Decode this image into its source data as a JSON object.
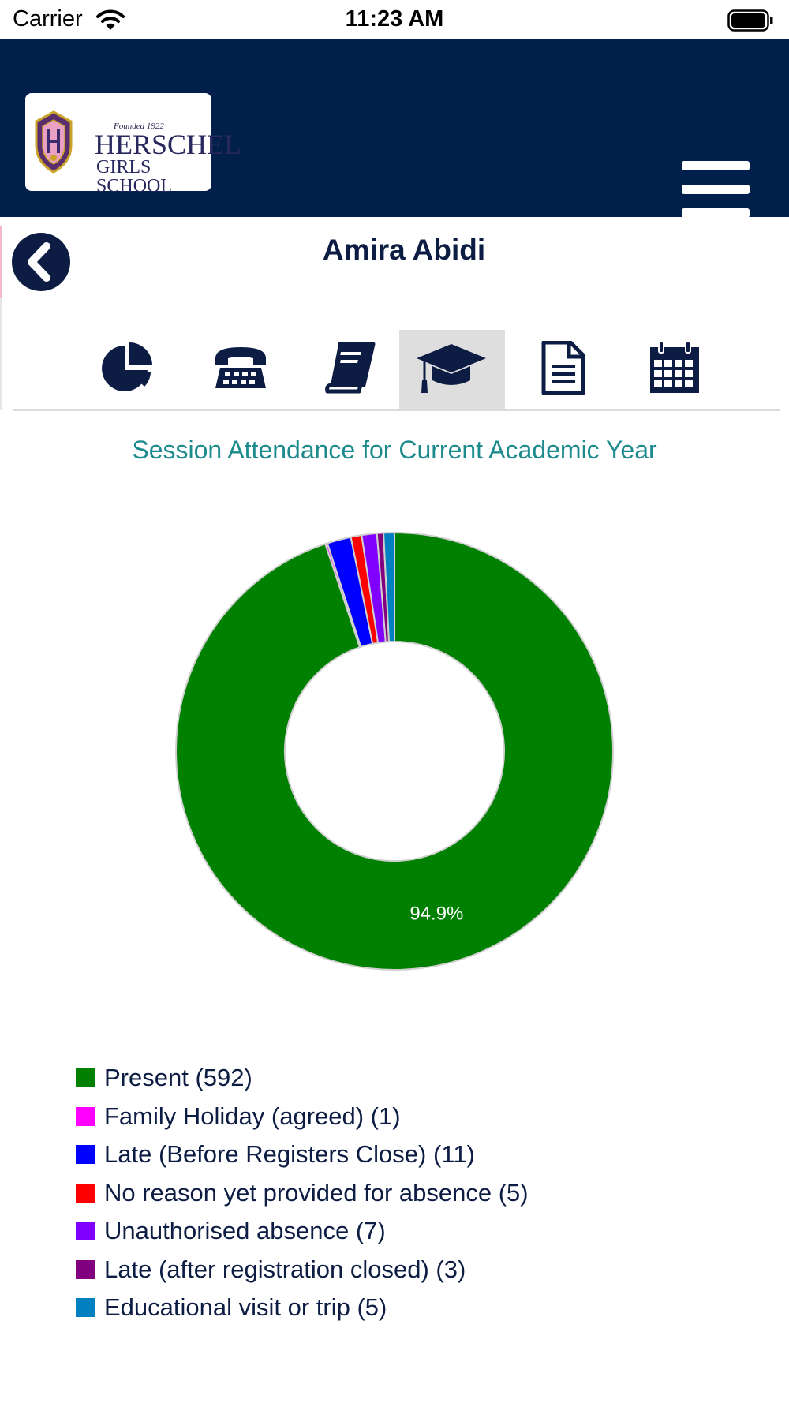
{
  "status_bar": {
    "carrier": "Carrier",
    "time": "11:23 AM"
  },
  "header": {
    "logo": {
      "founded": "Founded 1922",
      "name_line1": "HERSCHEL",
      "name_line2": "GIRLS SCHOOL"
    },
    "menu_icon": "hamburger-menu-icon"
  },
  "student": {
    "name": "Amira Abidi",
    "back_icon": "chevron-left-icon"
  },
  "tabs": [
    {
      "icon": "pie-chart-icon",
      "active": false
    },
    {
      "icon": "telephone-icon",
      "active": false
    },
    {
      "icon": "book-icon",
      "active": false
    },
    {
      "icon": "graduation-cap-icon",
      "active": true
    },
    {
      "icon": "document-icon",
      "active": false
    },
    {
      "icon": "calendar-icon",
      "active": false
    }
  ],
  "colors": {
    "header_bg": "#001f4a",
    "title_teal": "#1d8a8e",
    "name_navy": "#0c1c43"
  },
  "chart_data": {
    "type": "pie",
    "title": "Session Attendance for Current Academic Year",
    "donut": true,
    "slice_label": "94.9%",
    "legend_placement": "bottom",
    "slices": [
      {
        "label": "Present",
        "value": 592,
        "color": "#008000",
        "legend": "Present (592)"
      },
      {
        "label": "Family Holiday (agreed)",
        "value": 1,
        "color": "#ff00ff",
        "legend": "Family Holiday (agreed) (1)"
      },
      {
        "label": "Late (Before Registers Close)",
        "value": 11,
        "color": "#0000ff",
        "legend": "Late (Before Registers Close) (11)"
      },
      {
        "label": "No reason yet provided for absence",
        "value": 5,
        "color": "#ff0000",
        "legend": "No reason yet provided for absence (5)"
      },
      {
        "label": "Unauthorised absence",
        "value": 7,
        "color": "#8000ff",
        "legend": "Unauthorised absence (7)"
      },
      {
        "label": "Late (after registration closed)",
        "value": 3,
        "color": "#800080",
        "legend": "Late (after registration closed) (3)"
      },
      {
        "label": "Educational visit or trip",
        "value": 5,
        "color": "#0080c0",
        "legend": "Educational visit or trip (5)"
      }
    ]
  }
}
